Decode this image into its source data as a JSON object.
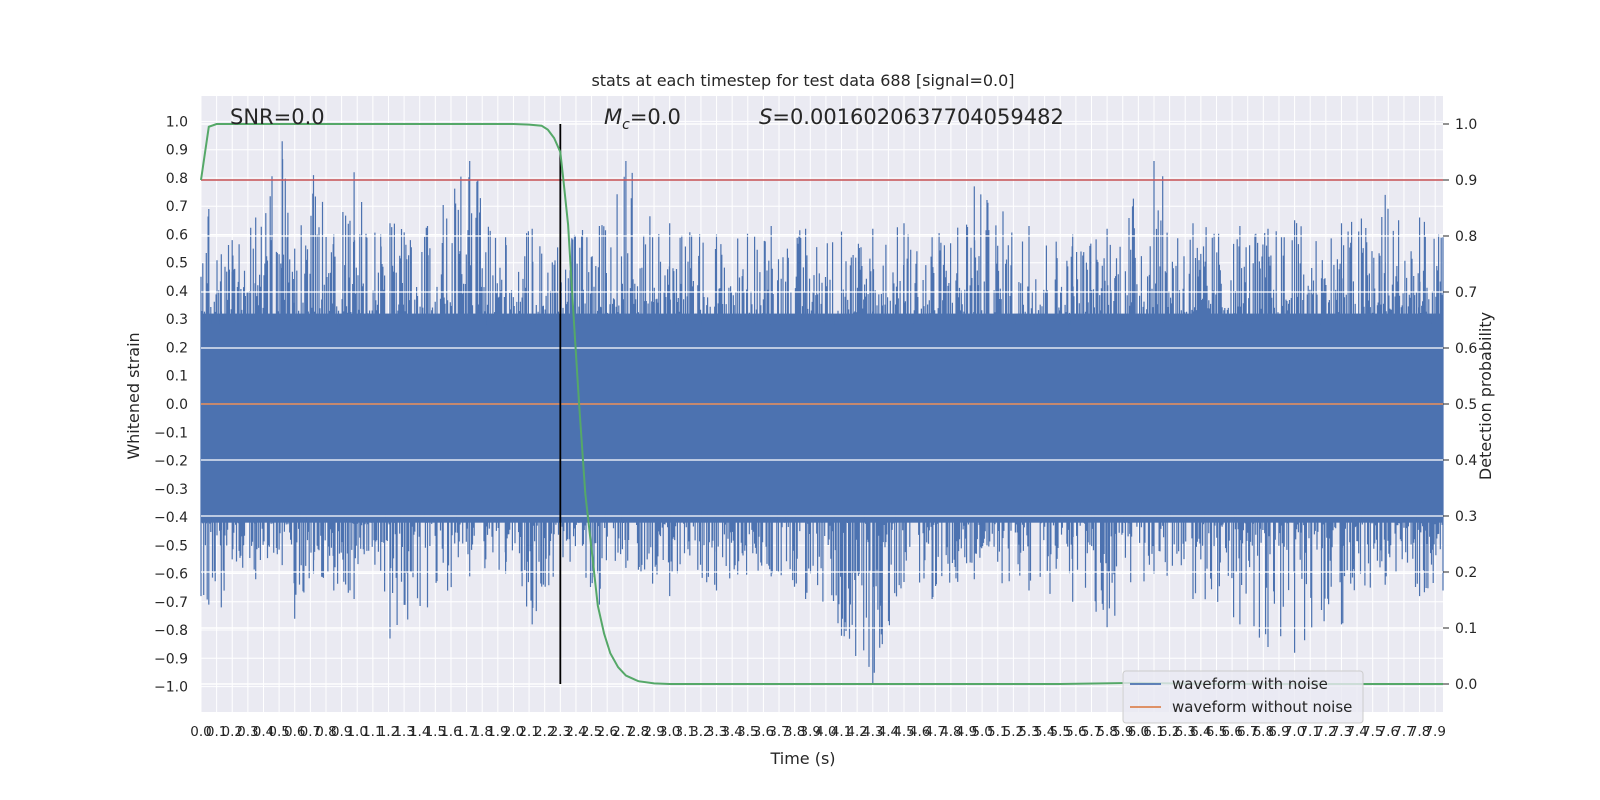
{
  "chart_data": {
    "type": "line",
    "title": "stats at each timestep for test data 688 [signal=0.0]",
    "xlabel": "Time (s)",
    "ylabel": "Whitened strain",
    "y2label": "Detection probability",
    "xlim": [
      0.0,
      7.95
    ],
    "ylim": [
      -1.09,
      1.09
    ],
    "y2lim": [
      -0.05,
      1.05
    ],
    "x_ticks": [
      0.0,
      0.1,
      0.2,
      0.3,
      0.4,
      0.5,
      0.6,
      0.7,
      0.8,
      0.9,
      1.0,
      1.1,
      1.2,
      1.3,
      1.4,
      1.5,
      1.6,
      1.7,
      1.8,
      1.9,
      2.0,
      2.1,
      2.2,
      2.3,
      2.4,
      2.5,
      2.6,
      2.7,
      2.8,
      2.9,
      3.0,
      3.1,
      3.2,
      3.3,
      3.4,
      3.5,
      3.6,
      3.7,
      3.8,
      3.9,
      4.0,
      4.1,
      4.2,
      4.3,
      4.4,
      4.5,
      4.6,
      4.7,
      4.8,
      4.9,
      5.0,
      5.1,
      5.2,
      5.3,
      5.4,
      5.5,
      5.6,
      5.7,
      5.8,
      5.9,
      6.0,
      6.1,
      6.2,
      6.3,
      6.4,
      6.5,
      6.6,
      6.7,
      6.8,
      6.9,
      7.0,
      7.1,
      7.2,
      7.3,
      7.4,
      7.5,
      7.6,
      7.7,
      7.8,
      7.9
    ],
    "y_ticks": [
      1.0,
      0.9,
      0.8,
      0.7,
      0.6,
      0.5,
      0.4,
      0.3,
      0.2,
      0.1,
      0.0,
      -0.1,
      -0.2,
      -0.3,
      -0.4,
      -0.5,
      -0.6,
      -0.7,
      -0.8,
      -0.9,
      -1.0
    ],
    "y2_ticks": [
      1.0,
      0.9,
      0.8,
      0.7,
      0.6,
      0.5,
      0.4,
      0.3,
      0.2,
      0.1,
      0.0
    ],
    "grid": true,
    "legend_position": "lower-right",
    "annotations": {
      "snr": "SNR=0.0",
      "mc_symbol": "M",
      "mc_sub": "c",
      "mc_value": "=0.0",
      "s_symbol": "S",
      "s_value": "=0.0016020637704059482"
    },
    "threshold": {
      "y2": 0.9,
      "color": "#c44e52"
    },
    "vertical_marker": {
      "x": 2.3,
      "y2_range": [
        0.0,
        1.0
      ],
      "color": "#000000"
    },
    "series": [
      {
        "name": "waveform with noise",
        "color": "#4c72b0",
        "axis": "left",
        "envelope_points": [
          {
            "x": 0.0,
            "max": 0.45,
            "min": -0.68
          },
          {
            "x": 0.05,
            "max": 0.69,
            "min": -0.71
          },
          {
            "x": 0.13,
            "max": 0.53,
            "min": -0.72
          },
          {
            "x": 0.2,
            "max": 0.58,
            "min": -0.55
          },
          {
            "x": 0.35,
            "max": 0.66,
            "min": -0.62
          },
          {
            "x": 0.52,
            "max": 0.93,
            "min": -0.57
          },
          {
            "x": 0.6,
            "max": 0.55,
            "min": -0.76
          },
          {
            "x": 0.72,
            "max": 0.81,
            "min": -0.6
          },
          {
            "x": 0.85,
            "max": 0.6,
            "min": -0.66
          },
          {
            "x": 0.98,
            "max": 0.82,
            "min": -0.69
          },
          {
            "x": 1.15,
            "max": 0.6,
            "min": -0.59
          },
          {
            "x": 1.21,
            "max": 0.64,
            "min": -0.83
          },
          {
            "x": 1.45,
            "max": 0.63,
            "min": -0.72
          },
          {
            "x": 1.72,
            "max": 0.86,
            "min": -0.61
          },
          {
            "x": 1.95,
            "max": 0.59,
            "min": -0.6
          },
          {
            "x": 2.12,
            "max": 0.62,
            "min": -0.78
          },
          {
            "x": 2.3,
            "max": 0.6,
            "min": -0.58
          },
          {
            "x": 2.55,
            "max": 0.63,
            "min": -0.71
          },
          {
            "x": 2.72,
            "max": 0.86,
            "min": -0.58
          },
          {
            "x": 3.0,
            "max": 0.64,
            "min": -0.68
          },
          {
            "x": 3.3,
            "max": 0.6,
            "min": -0.66
          },
          {
            "x": 3.65,
            "max": 0.63,
            "min": -0.61
          },
          {
            "x": 3.87,
            "max": 0.62,
            "min": -0.69
          },
          {
            "x": 4.1,
            "max": 0.61,
            "min": -0.82
          },
          {
            "x": 4.3,
            "max": 0.62,
            "min": -0.99
          },
          {
            "x": 4.5,
            "max": 0.64,
            "min": -0.63
          },
          {
            "x": 4.68,
            "max": 0.59,
            "min": -0.69
          },
          {
            "x": 4.95,
            "max": 0.77,
            "min": -0.62
          },
          {
            "x": 5.3,
            "max": 0.63,
            "min": -0.66
          },
          {
            "x": 5.58,
            "max": 0.6,
            "min": -0.7
          },
          {
            "x": 5.8,
            "max": 0.62,
            "min": -0.79
          },
          {
            "x": 6.1,
            "max": 0.86,
            "min": -0.6
          },
          {
            "x": 6.35,
            "max": 0.64,
            "min": -0.69
          },
          {
            "x": 6.65,
            "max": 0.63,
            "min": -0.78
          },
          {
            "x": 6.83,
            "max": 0.62,
            "min": -0.86
          },
          {
            "x": 7.0,
            "max": 0.65,
            "min": -0.88
          },
          {
            "x": 7.3,
            "max": 0.64,
            "min": -0.78
          },
          {
            "x": 7.58,
            "max": 0.74,
            "min": -0.64
          },
          {
            "x": 7.8,
            "max": 0.66,
            "min": -0.68
          },
          {
            "x": 7.95,
            "max": 0.59,
            "min": -0.66
          }
        ]
      },
      {
        "name": "waveform without noise",
        "color": "#dd8452",
        "axis": "left",
        "x": [
          0.0,
          7.95
        ],
        "y": [
          0.0,
          0.0
        ]
      },
      {
        "name": "",
        "color": "#55a868",
        "axis": "right",
        "x": [
          0.0,
          0.05,
          0.1,
          0.3,
          0.8,
          1.5,
          2.0,
          2.1,
          2.18,
          2.22,
          2.26,
          2.3,
          2.32,
          2.35,
          2.38,
          2.42,
          2.46,
          2.5,
          2.54,
          2.58,
          2.62,
          2.67,
          2.72,
          2.8,
          2.9,
          3.0,
          4.0,
          5.0,
          5.5,
          6.0,
          6.5,
          7.0,
          7.5,
          7.95
        ],
        "y": [
          0.9,
          0.995,
          1.0,
          1.0,
          1.0,
          1.0,
          1.0,
          0.999,
          0.997,
          0.99,
          0.975,
          0.95,
          0.9,
          0.82,
          0.68,
          0.5,
          0.34,
          0.24,
          0.14,
          0.09,
          0.055,
          0.03,
          0.015,
          0.005,
          0.001,
          0.0,
          0.0,
          0.0,
          0.0,
          0.002,
          0.0,
          0.0,
          0.0,
          0.0
        ]
      }
    ]
  }
}
